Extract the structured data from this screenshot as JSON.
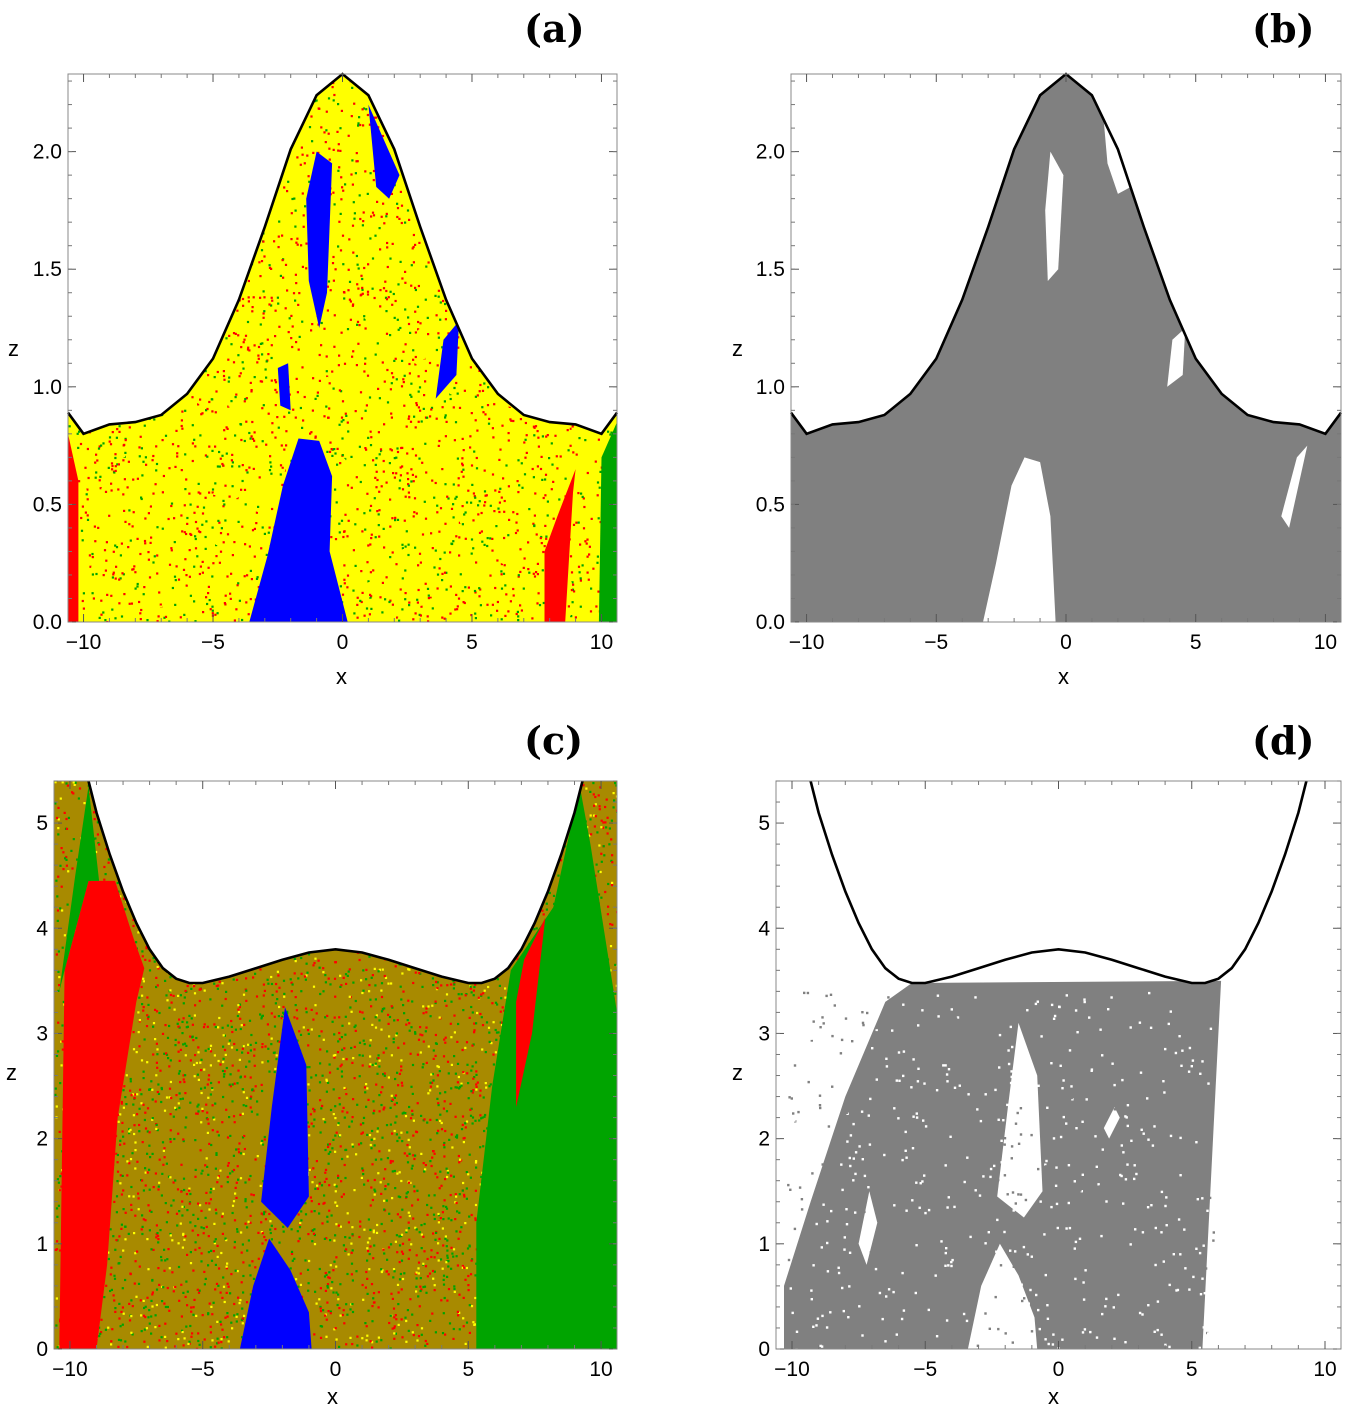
{
  "panels": [
    {
      "label": "(a)",
      "xlabel": "x",
      "ylabel": "z"
    },
    {
      "label": "(b)",
      "xlabel": "x",
      "ylabel": "z"
    },
    {
      "label": "(c)",
      "xlabel": "x",
      "ylabel": "z"
    },
    {
      "label": "(d)",
      "xlabel": "x",
      "ylabel": "z"
    }
  ],
  "chart_data": [
    {
      "panel": "(a)",
      "type": "heatmap",
      "xlabel": "x",
      "ylabel": "z",
      "xlim": [
        -10.6,
        10.6
      ],
      "ylim": [
        0,
        2.33
      ],
      "xticks": [
        -10,
        -5,
        0,
        5,
        10
      ],
      "xtick_labels": [
        "−10",
        "−5",
        "0",
        "5",
        "10"
      ],
      "yticks": [
        0,
        0.5,
        1,
        1.5,
        2
      ],
      "ytick_labels": [
        "0.0",
        "0.5",
        "1.0",
        "1.5",
        "2.0"
      ],
      "colors": {
        "yellow": "#ffff00",
        "red": "#ff0000",
        "green": "#00a400",
        "blue": "#0000ff"
      },
      "boundary_curve": {
        "x": [
          -10.6,
          -10,
          -9,
          -8,
          -7,
          -6,
          -5,
          -4,
          -3,
          -2,
          -1,
          0,
          1,
          2,
          3,
          4,
          5,
          6,
          7,
          8,
          9,
          10,
          10.6
        ],
        "y": [
          0.89,
          0.8,
          0.84,
          0.85,
          0.88,
          0.97,
          1.12,
          1.37,
          1.68,
          2.01,
          2.24,
          2.33,
          2.24,
          2.01,
          1.68,
          1.37,
          1.12,
          0.97,
          0.88,
          0.85,
          0.84,
          0.8,
          0.89
        ]
      },
      "regions": [
        {
          "color": "blue",
          "points": [
            [
              -3.6,
              0
            ],
            [
              -2.9,
              0.28
            ],
            [
              -2.3,
              0.58
            ],
            [
              -1.7,
              0.78
            ],
            [
              -0.9,
              0.77
            ],
            [
              -0.4,
              0.62
            ],
            [
              -0.5,
              0.3
            ],
            [
              0.2,
              0
            ]
          ]
        },
        {
          "color": "blue",
          "points": [
            [
              -1.0,
              2.0
            ],
            [
              -0.4,
              1.95
            ],
            [
              -0.6,
              1.4
            ],
            [
              -0.9,
              1.25
            ],
            [
              -1.3,
              1.45
            ],
            [
              -1.4,
              1.8
            ]
          ]
        },
        {
          "color": "blue",
          "points": [
            [
              1.0,
              2.2
            ],
            [
              1.6,
              2.05
            ],
            [
              2.2,
              1.9
            ],
            [
              1.8,
              1.8
            ],
            [
              1.3,
              1.85
            ]
          ]
        },
        {
          "color": "blue",
          "points": [
            [
              3.9,
              1.2
            ],
            [
              4.5,
              1.28
            ],
            [
              4.4,
              1.05
            ],
            [
              3.6,
              0.95
            ]
          ]
        },
        {
          "color": "blue",
          "points": [
            [
              -2.5,
              1.08
            ],
            [
              -2.1,
              1.1
            ],
            [
              -2.0,
              0.9
            ],
            [
              -2.4,
              0.92
            ]
          ]
        },
        {
          "color": "red",
          "points": [
            [
              7.8,
              0
            ],
            [
              8.6,
              0
            ],
            [
              8.9,
              0.55
            ],
            [
              9.0,
              0.65
            ],
            [
              8.3,
              0.45
            ],
            [
              7.8,
              0.3
            ]
          ]
        },
        {
          "color": "green",
          "points": [
            [
              9.9,
              0
            ],
            [
              10.6,
              0
            ],
            [
              10.6,
              0.85
            ],
            [
              10.0,
              0.7
            ]
          ]
        },
        {
          "color": "red",
          "points": [
            [
              -10.6,
              0
            ],
            [
              -10.2,
              0
            ],
            [
              -10.2,
              0.6
            ],
            [
              -10.6,
              0.8
            ]
          ]
        }
      ]
    },
    {
      "panel": "(b)",
      "type": "heatmap",
      "xlabel": "x",
      "ylabel": "z",
      "xlim": [
        -10.6,
        10.6
      ],
      "ylim": [
        0,
        2.33
      ],
      "xticks": [
        -10,
        -5,
        0,
        5,
        10
      ],
      "xtick_labels": [
        "−10",
        "−5",
        "0",
        "5",
        "10"
      ],
      "yticks": [
        0,
        0.5,
        1,
        1.5,
        2
      ],
      "ytick_labels": [
        "0.0",
        "0.5",
        "1.0",
        "1.5",
        "2.0"
      ],
      "colors": {
        "fill": "#808080",
        "gap": "#ffffff"
      },
      "boundary_curve": {
        "x": [
          -10.6,
          -10,
          -9,
          -8,
          -7,
          -6,
          -5,
          -4,
          -3,
          -2,
          -1,
          0,
          1,
          2,
          3,
          4,
          5,
          6,
          7,
          8,
          9,
          10,
          10.6
        ],
        "y": [
          0.89,
          0.8,
          0.84,
          0.85,
          0.88,
          0.97,
          1.12,
          1.37,
          1.68,
          2.01,
          2.24,
          2.33,
          2.24,
          2.01,
          1.68,
          1.37,
          1.12,
          0.97,
          0.88,
          0.85,
          0.84,
          0.8,
          0.89
        ]
      },
      "regions": [
        {
          "color": "gap",
          "points": [
            [
              -3.2,
              0
            ],
            [
              -2.7,
              0.25
            ],
            [
              -2.1,
              0.58
            ],
            [
              -1.6,
              0.7
            ],
            [
              -1.0,
              0.68
            ],
            [
              -0.6,
              0.45
            ],
            [
              -0.4,
              0
            ]
          ]
        },
        {
          "color": "gap",
          "points": [
            [
              -0.6,
              2.0
            ],
            [
              -0.1,
              1.9
            ],
            [
              -0.3,
              1.5
            ],
            [
              -0.7,
              1.45
            ],
            [
              -0.8,
              1.75
            ]
          ]
        },
        {
          "color": "gap",
          "points": [
            [
              1.4,
              2.2
            ],
            [
              2.1,
              2.05
            ],
            [
              2.5,
              1.85
            ],
            [
              2.0,
              1.82
            ],
            [
              1.6,
              1.95
            ]
          ]
        },
        {
          "color": "gap",
          "points": [
            [
              4.1,
              1.2
            ],
            [
              4.6,
              1.25
            ],
            [
              4.5,
              1.05
            ],
            [
              3.9,
              1.0
            ]
          ]
        },
        {
          "color": "gap",
          "points": [
            [
              8.3,
              0.45
            ],
            [
              8.9,
              0.7
            ],
            [
              9.3,
              0.75
            ],
            [
              8.6,
              0.4
            ]
          ]
        }
      ]
    },
    {
      "panel": "(c)",
      "type": "heatmap",
      "xlabel": "x",
      "ylabel": "z",
      "xlim": [
        -10.6,
        10.6
      ],
      "ylim": [
        0,
        5.4
      ],
      "xticks": [
        -10,
        -5,
        0,
        5,
        10
      ],
      "xtick_labels": [
        "−10",
        "−5",
        "0",
        "5",
        "10"
      ],
      "yticks": [
        0,
        1,
        2,
        3,
        4,
        5
      ],
      "ytick_labels": [
        "0",
        "1",
        "2",
        "3",
        "4",
        "5"
      ],
      "colors": {
        "yellow": "#ffff00",
        "red": "#ff0000",
        "green": "#00a400",
        "blue": "#0000ff"
      },
      "boundary_curve": {
        "x": [
          -9.3,
          -9,
          -8.5,
          -8,
          -7.5,
          -7,
          -6.5,
          -6,
          -5.5,
          -5,
          -4,
          -3,
          -2,
          -1,
          0,
          1,
          2,
          3,
          4,
          5,
          5.5,
          6,
          6.5,
          7,
          7.5,
          8,
          8.5,
          9,
          9.3
        ],
        "y": [
          5.4,
          5.1,
          4.7,
          4.35,
          4.05,
          3.8,
          3.62,
          3.52,
          3.48,
          3.48,
          3.54,
          3.62,
          3.7,
          3.77,
          3.8,
          3.77,
          3.7,
          3.62,
          3.54,
          3.48,
          3.48,
          3.52,
          3.62,
          3.8,
          4.05,
          4.35,
          4.7,
          5.1,
          5.4
        ]
      },
      "regions": [
        {
          "color": "green",
          "points": [
            [
              5.3,
              0
            ],
            [
              10.6,
              0
            ],
            [
              10.6,
              3.2
            ],
            [
              9.6,
              4.8
            ],
            [
              9.2,
              5.35
            ],
            [
              8.2,
              4.2
            ],
            [
              6.6,
              3.6
            ],
            [
              5.9,
              2.5
            ],
            [
              5.3,
              1.2
            ]
          ]
        },
        {
          "color": "red",
          "points": [
            [
              -10.4,
              0
            ],
            [
              -9.0,
              0
            ],
            [
              -8.6,
              0.8
            ],
            [
              -8.2,
              2.2
            ],
            [
              -7.5,
              3.3
            ],
            [
              -7.2,
              3.62
            ],
            [
              -7.6,
              3.9
            ],
            [
              -8.3,
              4.45
            ],
            [
              -9.3,
              4.45
            ],
            [
              -10.2,
              3.6
            ]
          ]
        },
        {
          "color": "green",
          "points": [
            [
              -10.4,
              3.4
            ],
            [
              -9.8,
              4.5
            ],
            [
              -9.3,
              5.35
            ],
            [
              -8.9,
              4.45
            ],
            [
              -9.3,
              4.45
            ],
            [
              -10.2,
              3.6
            ]
          ]
        },
        {
          "color": "red",
          "points": [
            [
              6.8,
              2.3
            ],
            [
              7.4,
              3.0
            ],
            [
              7.9,
              4.1
            ],
            [
              7.1,
              3.7
            ],
            [
              6.8,
              3.3
            ]
          ]
        },
        {
          "color": "blue",
          "points": [
            [
              -2.8,
              1.4
            ],
            [
              -2.4,
              2.3
            ],
            [
              -1.9,
              3.25
            ],
            [
              -1.1,
              2.7
            ],
            [
              -1.0,
              1.45
            ],
            [
              -1.8,
              1.15
            ]
          ]
        },
        {
          "color": "blue",
          "points": [
            [
              -3.6,
              0
            ],
            [
              -3.1,
              0.6
            ],
            [
              -2.5,
              1.05
            ],
            [
              -1.7,
              0.75
            ],
            [
              -1.0,
              0.35
            ],
            [
              -0.9,
              0
            ]
          ]
        }
      ]
    },
    {
      "panel": "(d)",
      "type": "heatmap",
      "xlabel": "x",
      "ylabel": "z",
      "xlim": [
        -10.6,
        10.6
      ],
      "ylim": [
        0,
        5.4
      ],
      "xticks": [
        -10,
        -5,
        0,
        5,
        10
      ],
      "xtick_labels": [
        "−10",
        "−5",
        "0",
        "5",
        "10"
      ],
      "yticks": [
        0,
        1,
        2,
        3,
        4,
        5
      ],
      "ytick_labels": [
        "0",
        "1",
        "2",
        "3",
        "4",
        "5"
      ],
      "colors": {
        "fill": "#808080",
        "gap": "#ffffff"
      },
      "boundary_curve": {
        "x": [
          -9.3,
          -9,
          -8.5,
          -8,
          -7.5,
          -7,
          -6.5,
          -6,
          -5.5,
          -5,
          -4,
          -3,
          -2,
          -1,
          0,
          1,
          2,
          3,
          4,
          5,
          5.5,
          6,
          6.5,
          7,
          7.5,
          8,
          8.5,
          9,
          9.3
        ],
        "y": [
          5.4,
          5.1,
          4.7,
          4.35,
          4.05,
          3.8,
          3.62,
          3.52,
          3.48,
          3.48,
          3.54,
          3.62,
          3.7,
          3.77,
          3.8,
          3.77,
          3.7,
          3.62,
          3.54,
          3.48,
          3.48,
          3.52,
          3.62,
          3.8,
          4.05,
          4.35,
          4.7,
          5.1,
          5.4
        ]
      },
      "regions": [
        {
          "color": "fill",
          "points": [
            [
              -10.3,
              0
            ],
            [
              5.4,
              0
            ],
            [
              5.6,
              1.0
            ],
            [
              5.9,
              2.5
            ],
            [
              6.1,
              3.5
            ],
            [
              -5.5,
              3.48
            ],
            [
              -6.5,
              3.3
            ],
            [
              -8.0,
              2.4
            ],
            [
              -9.3,
              1.4
            ],
            [
              -10.3,
              0.6
            ]
          ]
        },
        {
          "color": "gap",
          "points": [
            [
              -2.3,
              1.45
            ],
            [
              -1.9,
              2.3
            ],
            [
              -1.5,
              3.1
            ],
            [
              -0.8,
              2.6
            ],
            [
              -0.6,
              1.5
            ],
            [
              -1.3,
              1.25
            ]
          ]
        },
        {
          "color": "gap",
          "points": [
            [
              -3.4,
              0
            ],
            [
              -2.9,
              0.6
            ],
            [
              -2.2,
              1.0
            ],
            [
              -1.5,
              0.7
            ],
            [
              -0.9,
              0.3
            ],
            [
              -0.8,
              0
            ]
          ]
        },
        {
          "color": "gap",
          "points": [
            [
              1.7,
              2.1
            ],
            [
              2.1,
              2.3
            ],
            [
              2.3,
              2.2
            ],
            [
              1.9,
              2.0
            ]
          ]
        },
        {
          "color": "gap",
          "points": [
            [
              -7.5,
              1.0
            ],
            [
              -7.1,
              1.5
            ],
            [
              -6.8,
              1.2
            ],
            [
              -7.2,
              0.8
            ]
          ]
        }
      ]
    }
  ]
}
